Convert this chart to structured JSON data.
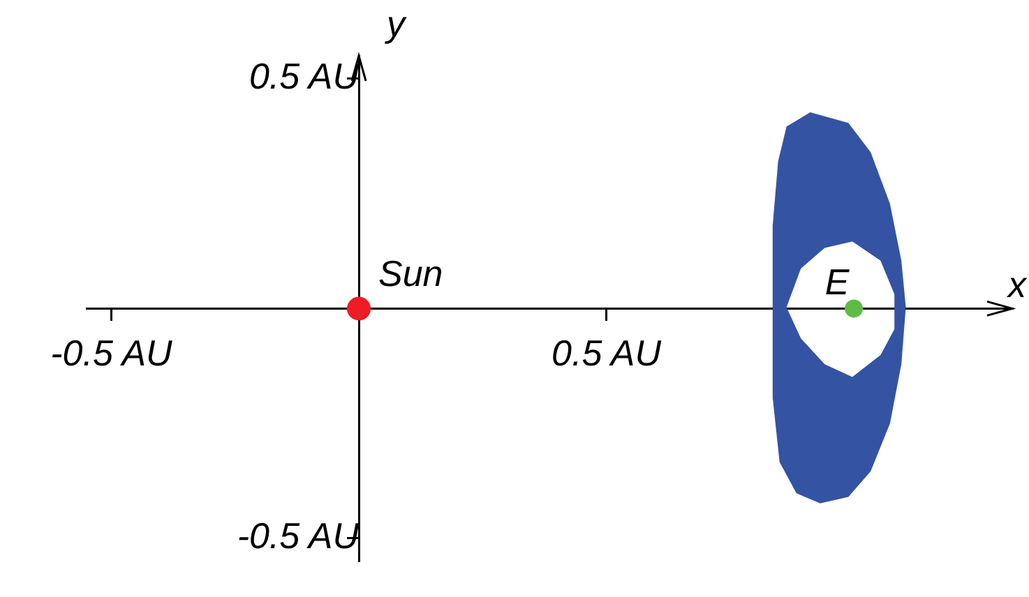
{
  "chart_data": {
    "type": "scatter",
    "xlabel": "x",
    "ylabel": "y",
    "xlim": [
      -0.55,
      1.32
    ],
    "ylim": [
      -0.55,
      0.55
    ],
    "xticks": [
      {
        "value": -0.5,
        "label": "-0.5 AU"
      },
      {
        "value": 0.5,
        "label": "0.5 AU"
      }
    ],
    "yticks": [
      {
        "value": -0.5,
        "label": "-0.5 AU"
      },
      {
        "value": 0.5,
        "label": "0.5 AU"
      }
    ],
    "grid": false,
    "legend": false,
    "series": [
      {
        "type": "area",
        "color": "#3453a3",
        "x": [
          0.912,
          0.989,
          1.034,
          1.073,
          1.096,
          1.105,
          1.096,
          1.073,
          1.034,
          0.989,
          0.932,
          0.884,
          0.85,
          0.836,
          0.836,
          0.836,
          0.836,
          0.847,
          0.864,
          null,
          0.997,
          1.054,
          1.082,
          1.082,
          1.054,
          0.997,
          0.941,
          0.893,
          0.864,
          0.893,
          0.941
        ],
        "values": [
          0.427,
          0.404,
          0.34,
          0.228,
          0.104,
          0.003,
          -0.121,
          -0.25,
          -0.354,
          -0.41,
          -0.424,
          -0.402,
          -0.334,
          -0.194,
          -0.065,
          0.067,
          0.18,
          0.32,
          0.396,
          null,
          0.146,
          0.104,
          0.031,
          -0.045,
          -0.101,
          -0.149,
          -0.121,
          -0.065,
          0.003,
          0.087,
          0.132
        ]
      },
      {
        "name": "Sun",
        "color": "#ee1c24",
        "marker": "circle",
        "x": [
          0
        ],
        "values": [
          0
        ]
      },
      {
        "name": "E",
        "color": "#5fba46",
        "marker": "circle",
        "x": [
          1.0
        ],
        "values": [
          0
        ]
      }
    ]
  }
}
